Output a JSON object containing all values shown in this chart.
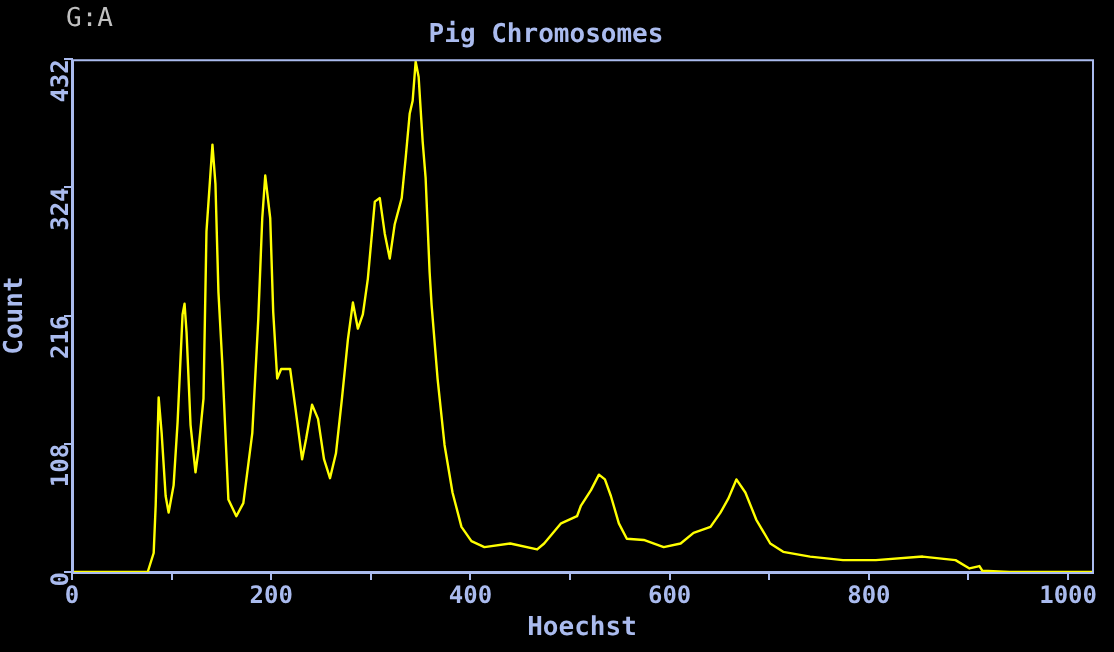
{
  "chart_data": {
    "type": "line",
    "title": "Pig Chromosomes",
    "xlabel": "Hoechst",
    "ylabel": "Count",
    "annotations": [
      "G:A"
    ],
    "x": [
      0,
      76,
      82,
      84,
      87,
      90,
      94,
      97,
      102,
      106,
      111,
      113,
      115,
      119,
      124,
      127,
      132,
      135,
      141,
      144,
      147,
      151,
      157,
      165,
      172,
      181,
      187,
      191,
      194,
      199,
      202,
      206,
      210,
      219,
      224,
      231,
      235,
      241,
      247,
      253,
      259,
      265,
      271,
      277,
      282,
      287,
      292,
      297,
      304,
      309,
      314,
      319,
      324,
      331,
      335,
      339,
      342,
      345,
      348,
      352,
      355,
      359,
      361,
      367,
      374,
      382,
      391,
      401,
      414,
      440,
      467,
      474,
      491,
      507,
      511,
      521,
      529,
      535,
      541,
      549,
      557,
      574,
      594,
      611,
      624,
      641,
      651,
      659,
      667,
      676,
      687,
      701,
      714,
      741,
      774,
      807,
      854,
      887,
      901,
      911,
      914,
      941,
      1024
    ],
    "series": [
      {
        "color": "#ffff00",
        "values": [
          0,
          0,
          16,
          56,
          147,
          117,
          64,
          50,
          73,
          126,
          217,
          226,
          202,
          124,
          84,
          103,
          146,
          287,
          360,
          327,
          236,
          174,
          61,
          47,
          58,
          117,
          213,
          298,
          334,
          298,
          219,
          163,
          171,
          171,
          140,
          95,
          112,
          141,
          129,
          95,
          79,
          100,
          146,
          196,
          227,
          205,
          217,
          247,
          312,
          315,
          285,
          264,
          293,
          315,
          349,
          386,
          397,
          430,
          417,
          363,
          332,
          253,
          225,
          163,
          107,
          67,
          38,
          26,
          21,
          24,
          19,
          24,
          41,
          47,
          56,
          69,
          82,
          78,
          64,
          41,
          28,
          27,
          21,
          24,
          33,
          38,
          50,
          62,
          78,
          67,
          44,
          24,
          17,
          13,
          10,
          10,
          13,
          10,
          3,
          5,
          1,
          0,
          0
        ]
      }
    ],
    "xlim": [
      0,
      1024
    ],
    "ylim": [
      0,
      432
    ],
    "xticks": [
      0,
      {
        "value": 100,
        "label": null
      },
      200,
      {
        "value": 300,
        "label": null
      },
      400,
      {
        "value": 500,
        "label": null
      },
      600,
      {
        "value": 700,
        "label": null
      },
      800,
      {
        "value": 900,
        "label": null
      },
      1000
    ],
    "yticks": [
      0,
      108,
      216,
      324,
      432
    ],
    "grid": false,
    "legend": false,
    "marker": "none",
    "line_style": "solid"
  }
}
